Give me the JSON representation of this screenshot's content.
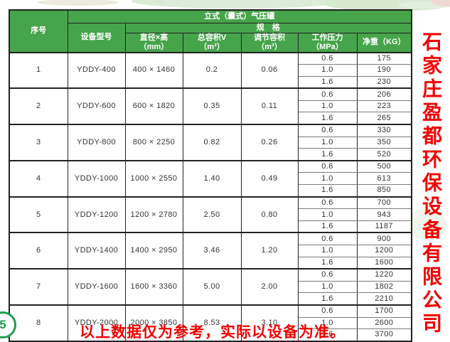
{
  "page": {
    "footer_note": "以上数据仅为参考，实际以设备为准。",
    "company_vertical": "石家庄盈都环保设备有限公司",
    "badge_text": "5"
  },
  "colors": {
    "header_green": "#46a44b",
    "accent_red": "#f20000",
    "border_dark": "#222222"
  },
  "table": {
    "title": "立式（囊式）气压罐",
    "spec_header": "规　格",
    "columns": {
      "no": "序号",
      "model": "设备型号",
      "size_line1": "直径×高",
      "size_line2": "（mm）",
      "total_line1": "总容积V",
      "total_line2": "（m³）",
      "adj_line1": "调节容积",
      "adj_line2": "（m³）",
      "pressure_line1": "工作压力",
      "pressure_line2": "（MPa）",
      "weight": "净重（KG）"
    },
    "groups": [
      {
        "no": "1",
        "model": "YDDY-400",
        "size": "400 × 1460",
        "total": "0.2",
        "adj": "0.06",
        "rows": [
          [
            "0.6",
            "175"
          ],
          [
            "1.0",
            "190"
          ],
          [
            "1.6",
            "230"
          ]
        ]
      },
      {
        "no": "2",
        "model": "YDDY-600",
        "size": "600 × 1820",
        "total": "0.35",
        "adj": "0.11",
        "rows": [
          [
            "0.6",
            "206"
          ],
          [
            "1.0",
            "223"
          ],
          [
            "1.6",
            "265"
          ]
        ]
      },
      {
        "no": "3",
        "model": "YDDY-800",
        "size": "800 × 2250",
        "total": "0.82",
        "adj": "0.26",
        "rows": [
          [
            "0.6",
            "330"
          ],
          [
            "1.0",
            "350"
          ],
          [
            "1.6",
            "520"
          ]
        ]
      },
      {
        "no": "4",
        "model": "YDDY-1000",
        "size": "1000 × 2550",
        "total": "1.40",
        "adj": "0.49",
        "rows": [
          [
            "0.6",
            "500"
          ],
          [
            "1.0",
            "613"
          ],
          [
            "1.6",
            "850"
          ]
        ]
      },
      {
        "no": "5",
        "model": "YDDY-1200",
        "size": "1200 × 2780",
        "total": "2.50",
        "adj": "0.80",
        "rows": [
          [
            "0.6",
            "700"
          ],
          [
            "1.0",
            "943"
          ],
          [
            "1.6",
            "1187"
          ]
        ]
      },
      {
        "no": "6",
        "model": "YDDY-1400",
        "size": "1400 × 2950",
        "total": "3.46",
        "adj": "1.20",
        "rows": [
          [
            "0.6",
            "900"
          ],
          [
            "1.0",
            "1200"
          ],
          [
            "1.6",
            "1600"
          ]
        ]
      },
      {
        "no": "7",
        "model": "YDDY-1600",
        "size": "1600 × 3360",
        "total": "5.00",
        "adj": "2.00",
        "rows": [
          [
            "0.6",
            "1220"
          ],
          [
            "1.0",
            "1802"
          ],
          [
            "1.6",
            "2210"
          ]
        ]
      },
      {
        "no": "8",
        "model": "YDDY-2000",
        "size": "2000 × 3850",
        "total": "8.53",
        "adj": "3.10",
        "rows": [
          [
            "0.6",
            "1700"
          ],
          [
            "1.0",
            "2600"
          ],
          [
            "1.6",
            "3700"
          ]
        ]
      }
    ]
  }
}
